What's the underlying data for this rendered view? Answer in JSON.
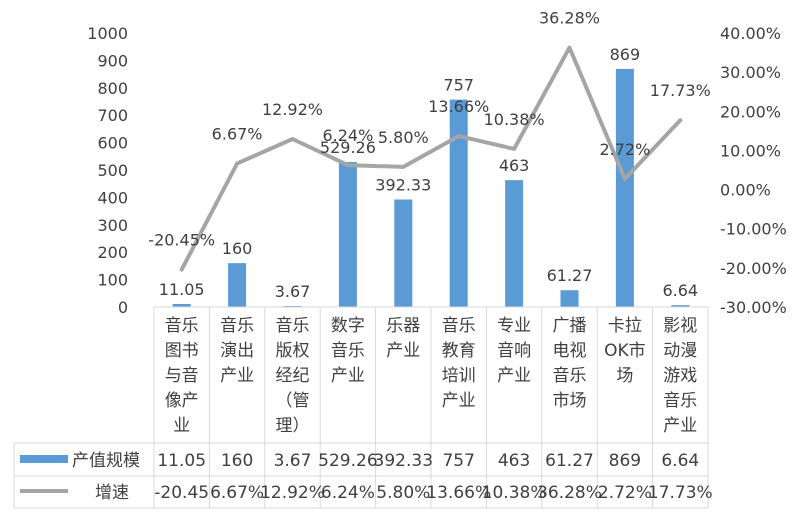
{
  "chart_data": {
    "type": "bar+line",
    "categories": [
      [
        "音乐",
        "图书",
        "与音",
        "像产",
        "业"
      ],
      [
        "音乐",
        "演出",
        "产业"
      ],
      [
        "音乐",
        "版权",
        "经纪",
        "（管",
        "理）"
      ],
      [
        "数字",
        "音乐",
        "产业"
      ],
      [
        "乐器",
        "产业"
      ],
      [
        "音乐",
        "教育",
        "培训",
        "产业"
      ],
      [
        "专业",
        "音响",
        "产业"
      ],
      [
        "广播",
        "电视",
        "音乐",
        "市场"
      ],
      [
        "卡拉",
        "OK市",
        "场"
      ],
      [
        "影视",
        "动漫",
        "游戏",
        "音乐",
        "产业"
      ]
    ],
    "series": [
      {
        "name": "产值规模",
        "type": "bar",
        "axis": "left",
        "color": "#5b9bd5",
        "values": [
          11.05,
          160,
          3.67,
          529.26,
          392.33,
          757,
          463,
          61.27,
          869,
          6.64
        ],
        "labels": [
          "11.05",
          "160",
          "3.67",
          "529.26",
          "392.33",
          "757",
          "463",
          "61.27",
          "869",
          "6.64"
        ]
      },
      {
        "name": "增速",
        "type": "line",
        "axis": "right",
        "color": "#a5a5a5",
        "values": [
          -20.45,
          6.67,
          12.92,
          6.24,
          5.8,
          13.66,
          10.38,
          36.28,
          2.72,
          17.73
        ],
        "labels": [
          "-20.45%",
          "6.67%",
          "12.92%",
          "6.24%",
          "5.80%",
          "13.66%",
          "10.38%",
          "36.28%",
          "2.72%",
          "17.73%"
        ],
        "table_labels": [
          "-20.45",
          "6.67%",
          "12.92%",
          "6.24%",
          "5.80%",
          "13.66%",
          "10.38%",
          "36.28%",
          "2.72%",
          "17.73%"
        ]
      }
    ],
    "y_left": {
      "min": 0,
      "max": 1000,
      "step": 100,
      "ticks": [
        "0",
        "100",
        "200",
        "300",
        "400",
        "500",
        "600",
        "700",
        "800",
        "900",
        "1000"
      ]
    },
    "y_right": {
      "min": -30,
      "max": 40,
      "step": 10,
      "ticks": [
        "-30.00%",
        "-20.00%",
        "-10.00%",
        "0.00%",
        "10.00%",
        "20.00%",
        "30.00%",
        "40.00%"
      ]
    },
    "grid": false,
    "legend": "data-table-below"
  }
}
